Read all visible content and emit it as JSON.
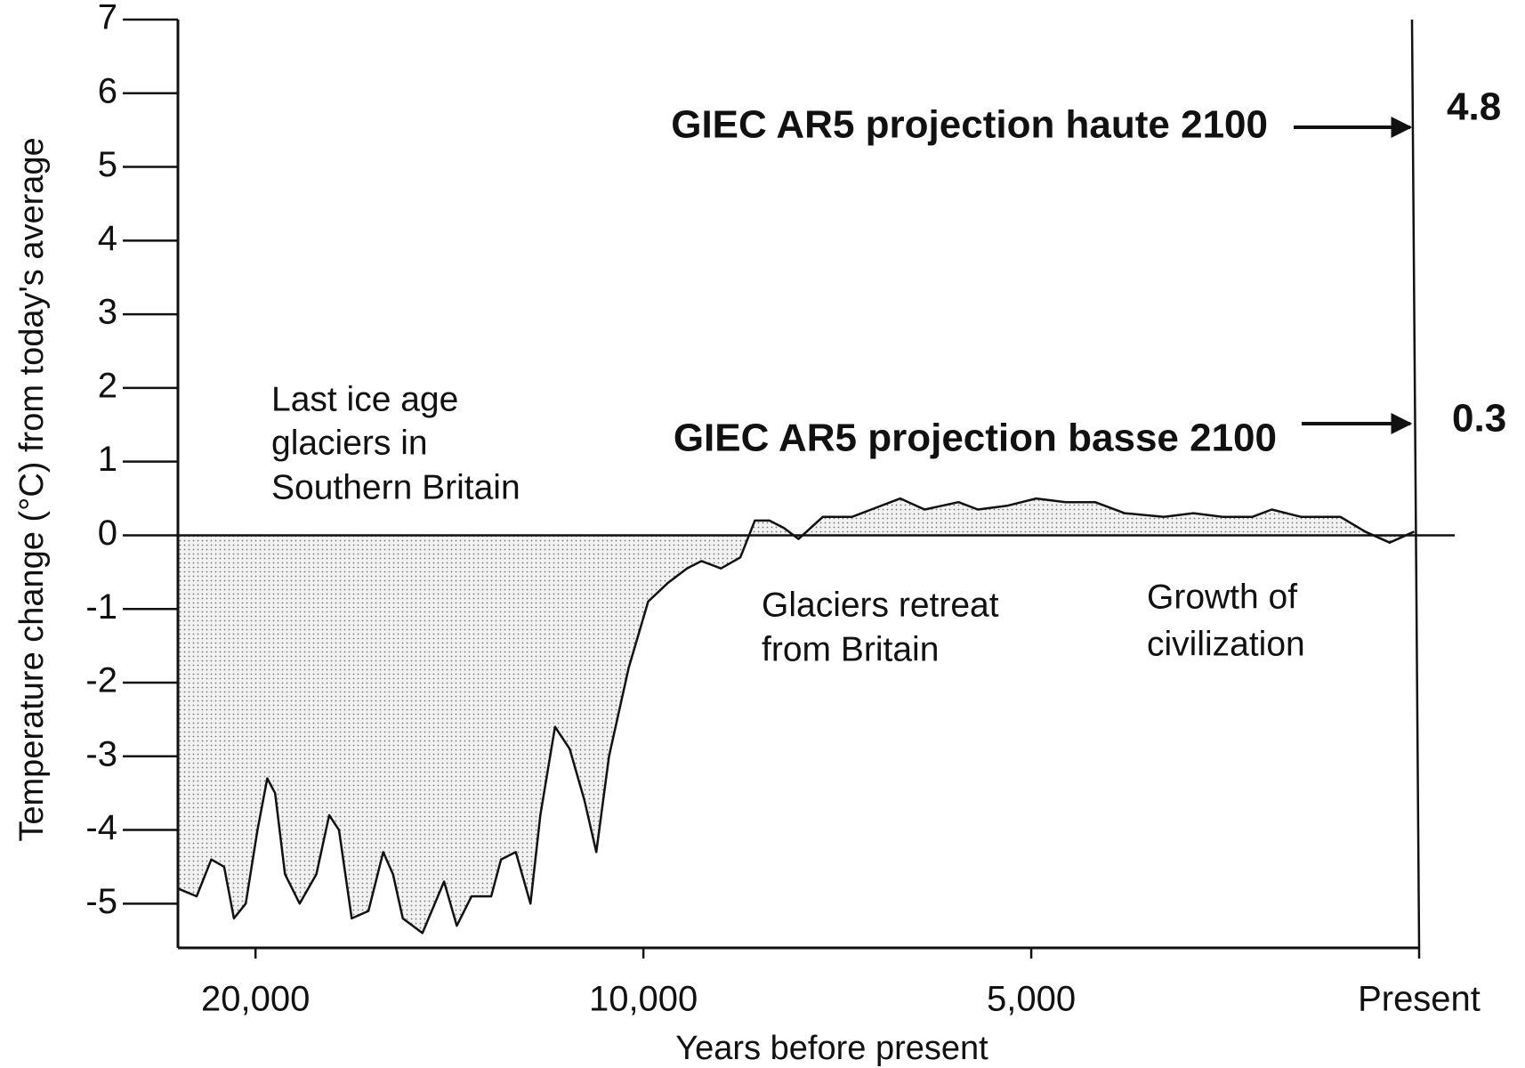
{
  "chart_data": {
    "type": "area",
    "xlabel": "Years before present",
    "ylabel": "Temperature change (°C) from today's average",
    "x": [
      21975,
      21519,
      21139,
      20810,
      20557,
      20253,
      19949,
      19696,
      19494,
      19241,
      18861,
      18430,
      18101,
      17848,
      17519,
      17089,
      16709,
      16456,
      16203,
      15696,
      15139,
      14810,
      14430,
      13924,
      13671,
      13291,
      12911,
      12658,
      12278,
      11899,
      11519,
      11215,
      10886,
      10380,
      9938,
      9688,
      9438,
      9250,
      9000,
      8750,
      8563,
      8375,
      8188,
      8000,
      7688,
      7313,
      7063,
      6688,
      6375,
      5938,
      5688,
      5313,
      4937,
      4557,
      4177,
      3797,
      3291,
      2911,
      2532,
      2152,
      1899,
      1519,
      1013,
      696,
      380,
      63
    ],
    "values": [
      -4.8,
      -4.9,
      -4.4,
      -4.5,
      -5.2,
      -5.0,
      -4.0,
      -3.3,
      -3.5,
      -4.6,
      -5.0,
      -4.6,
      -3.8,
      -4.0,
      -5.2,
      -5.1,
      -4.3,
      -4.6,
      -5.2,
      -5.4,
      -4.7,
      -5.3,
      -4.9,
      -4.9,
      -4.4,
      -4.3,
      -5.0,
      -3.8,
      -2.6,
      -2.9,
      -3.6,
      -4.3,
      -3.0,
      -1.8,
      -0.9,
      -0.65,
      -0.45,
      -0.35,
      -0.45,
      -0.3,
      0.2,
      0.2,
      0.1,
      -0.05,
      0.25,
      0.25,
      0.35,
      0.5,
      0.35,
      0.45,
      0.35,
      0.4,
      0.5,
      0.45,
      0.45,
      0.3,
      0.25,
      0.3,
      0.25,
      0.25,
      0.35,
      0.25,
      0.25,
      0.05,
      -0.1,
      0.05
    ],
    "color": "#111111",
    "fill": "#d4d4d4",
    "xlim": [
      22000,
      0
    ],
    "xticks": [
      {
        "value": 20000,
        "label": "20,000"
      },
      {
        "value": 10000,
        "label": "10,000"
      },
      {
        "value": 5000,
        "label": "5,000"
      },
      {
        "value": 0,
        "label": "Present"
      }
    ],
    "ylim": [
      -5.6,
      7
    ],
    "yticks": [
      -5,
      -4,
      -3,
      -2,
      -1,
      0,
      1,
      2,
      3,
      4,
      5,
      6,
      7
    ],
    "annotations": [
      {
        "lines": [
          "Last ice age",
          "glaciers in",
          "Southern Britain"
        ]
      },
      {
        "lines": [
          "Glaciers retreat",
          "from Britain"
        ]
      },
      {
        "lines": [
          "Growth of",
          "civilization"
        ]
      }
    ],
    "projections": [
      {
        "label": "GIEC AR5 projection haute 2100",
        "value": 4.8
      },
      {
        "label": "GIEC AR5 projection basse 2100",
        "value": 0.3
      }
    ]
  }
}
